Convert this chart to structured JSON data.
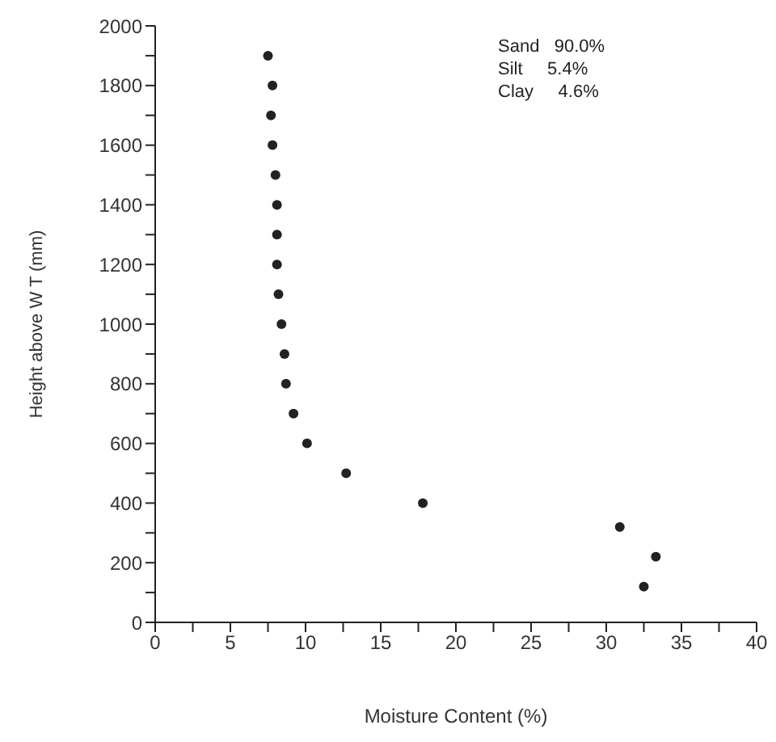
{
  "chart_data": {
    "type": "scatter",
    "xlabel": "Moisture Content (%)",
    "ylabel": "Height above W T (mm)",
    "annotations": [
      "Sand   90.0%",
      "Silt     5.4%",
      "Clay     4.6%"
    ],
    "xlim": [
      0,
      40
    ],
    "ylim": [
      0,
      2000
    ],
    "xticks": [
      0,
      {
        "value": 2.5,
        "label": null
      },
      5,
      {
        "value": 7.5,
        "label": null
      },
      10,
      {
        "value": 12.5,
        "label": null
      },
      15,
      {
        "value": 17.5,
        "label": null
      },
      20,
      {
        "value": 22.5,
        "label": null
      },
      25,
      {
        "value": 27.5,
        "label": null
      },
      30,
      {
        "value": 32.5,
        "label": null
      },
      35,
      {
        "value": 37.5,
        "label": null
      },
      40
    ],
    "yticks": [
      0,
      {
        "value": 100,
        "label": null
      },
      200,
      {
        "value": 300,
        "label": null
      },
      400,
      {
        "value": 500,
        "label": null
      },
      600,
      {
        "value": 700,
        "label": null
      },
      800,
      {
        "value": 900,
        "label": null
      },
      1000,
      {
        "value": 1100,
        "label": null
      },
      1200,
      {
        "value": 1300,
        "label": null
      },
      1400,
      {
        "value": 1500,
        "label": null
      },
      1600,
      {
        "value": 1700,
        "label": null
      },
      1800,
      {
        "value": 1900,
        "label": null
      },
      2000
    ],
    "grid": false,
    "legend": false,
    "marker": "circle",
    "series": [
      {
        "color": "#222222",
        "x": [
          7.5,
          7.8,
          7.7,
          7.8,
          8.0,
          8.1,
          8.1,
          8.1,
          8.2,
          8.4,
          8.6,
          8.7,
          9.2,
          10.1,
          12.7,
          17.8,
          30.9,
          33.3,
          32.5
        ],
        "values": [
          1900,
          1800,
          1700,
          1600,
          1500,
          1400,
          1300,
          1200,
          1100,
          1000,
          900,
          800,
          700,
          600,
          500,
          400,
          320,
          220,
          120
        ]
      }
    ]
  }
}
